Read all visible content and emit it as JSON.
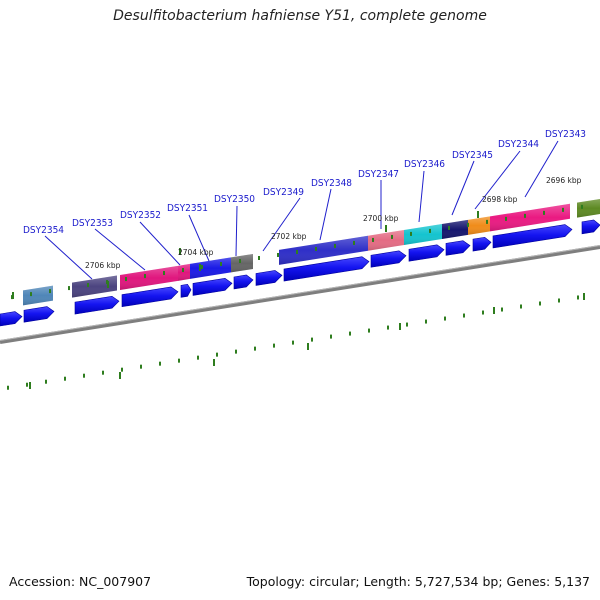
{
  "title": "Desulfitobacterium hafniense Y51, complete genome",
  "accession": "Accession: NC_007907",
  "genome_info": "Topology: circular; Length: 5,727,534 bp; Genes: 5,137",
  "colors": {
    "cds_blue": "#0a0aee",
    "backbone": "#8c8c8c",
    "tick": "#2e7d1e",
    "label": "#1a1acc"
  },
  "scale_labels": [
    "2696 kbp",
    "2698 kbp",
    "2700 kbp",
    "2702 kbp",
    "2704 kbp",
    "2706 kbp"
  ],
  "gene_labels": [
    "DSY2343",
    "DSY2344",
    "DSY2345",
    "DSY2346",
    "DSY2347",
    "DSY2348",
    "DSY2349",
    "DSY2350",
    "DSY2351",
    "DSY2352",
    "DSY2353",
    "DSY2354"
  ]
}
